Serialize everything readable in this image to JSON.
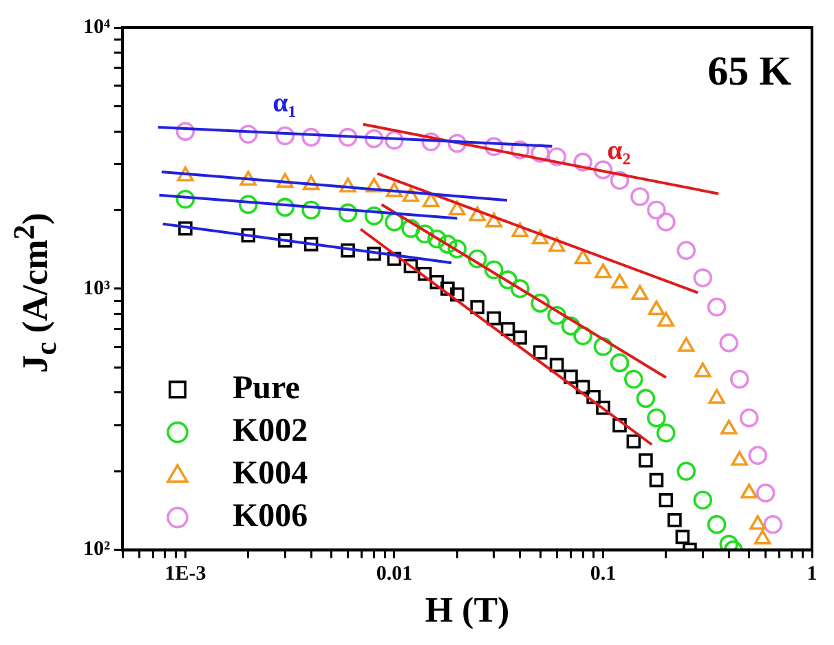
{
  "chart_data": {
    "type": "scatter",
    "xlabel": "H (T)",
    "ylabel": "J$_{c}$ (A/cm$^{2}$)",
    "log": "xy",
    "grid": false,
    "legend": "bottom left",
    "line_style": "solid",
    "xlim": [
      0.0005,
      1
    ],
    "ylim": [
      100,
      10000
    ],
    "xticks": [
      {
        "value": 0.0005,
        "label": null
      },
      {
        "value": 0.0006,
        "label": null
      },
      {
        "value": 0.0007,
        "label": null
      },
      {
        "value": 0.0008,
        "label": null
      },
      {
        "value": 0.0009,
        "label": null
      },
      {
        "value": 0.001,
        "label": "1E-3"
      },
      {
        "value": 0.002,
        "label": null
      },
      {
        "value": 0.003,
        "label": null
      },
      {
        "value": 0.004,
        "label": null
      },
      {
        "value": 0.005,
        "label": null
      },
      {
        "value": 0.006,
        "label": null
      },
      {
        "value": 0.007,
        "label": null
      },
      {
        "value": 0.008,
        "label": null
      },
      {
        "value": 0.009,
        "label": null
      },
      0.01,
      {
        "value": 0.02,
        "label": null
      },
      {
        "value": 0.03,
        "label": null
      },
      {
        "value": 0.04,
        "label": null
      },
      {
        "value": 0.05,
        "label": null
      },
      {
        "value": 0.06,
        "label": null
      },
      {
        "value": 0.07,
        "label": null
      },
      {
        "value": 0.08,
        "label": null
      },
      {
        "value": 0.09,
        "label": null
      },
      0.1,
      {
        "value": 0.2,
        "label": null
      },
      {
        "value": 0.3,
        "label": null
      },
      {
        "value": 0.4,
        "label": null
      },
      {
        "value": 0.5,
        "label": null
      },
      {
        "value": 0.6,
        "label": null
      },
      {
        "value": 0.7,
        "label": null
      },
      {
        "value": 0.8,
        "label": null
      },
      {
        "value": 0.9,
        "label": null
      },
      1
    ],
    "yticks": [
      {
        "value": 100,
        "label": "10²"
      },
      {
        "value": 200,
        "label": null
      },
      {
        "value": 300,
        "label": null
      },
      {
        "value": 400,
        "label": null
      },
      {
        "value": 500,
        "label": null
      },
      {
        "value": 600,
        "label": null
      },
      {
        "value": 700,
        "label": null
      },
      {
        "value": 800,
        "label": null
      },
      {
        "value": 900,
        "label": null
      },
      {
        "value": 1000,
        "label": "10³"
      },
      {
        "value": 2000,
        "label": null
      },
      {
        "value": 3000,
        "label": null
      },
      {
        "value": 4000,
        "label": null
      },
      {
        "value": 5000,
        "label": null
      },
      {
        "value": 6000,
        "label": null
      },
      {
        "value": 7000,
        "label": null
      },
      {
        "value": 8000,
        "label": null
      },
      {
        "value": 9000,
        "label": null
      },
      {
        "value": 10000,
        "label": "10⁴"
      }
    ],
    "annotations": [
      "65 K",
      "α₁",
      "α₂"
    ],
    "series": [
      {
        "name": "Pure",
        "marker": "square",
        "color": "#000000",
        "x": [
          0.001,
          0.002,
          0.003,
          0.004,
          0.006,
          0.008,
          0.01,
          0.012,
          0.014,
          0.016,
          0.018,
          0.02,
          0.025,
          0.03,
          0.035,
          0.04,
          0.05,
          0.06,
          0.07,
          0.08,
          0.09,
          0.1,
          0.12,
          0.14,
          0.16,
          0.18,
          0.2,
          0.22,
          0.24,
          0.26
        ],
        "values": [
          1700,
          1600,
          1530,
          1480,
          1400,
          1360,
          1300,
          1220,
          1140,
          1060,
          1000,
          950,
          850,
          770,
          700,
          650,
          570,
          510,
          460,
          420,
          385,
          350,
          300,
          260,
          220,
          185,
          155,
          130,
          112,
          100
        ]
      },
      {
        "name": "K002",
        "marker": "circle",
        "color": "#22dd22",
        "x": [
          0.001,
          0.002,
          0.003,
          0.004,
          0.006,
          0.008,
          0.01,
          0.012,
          0.014,
          0.016,
          0.018,
          0.02,
          0.025,
          0.03,
          0.035,
          0.04,
          0.05,
          0.06,
          0.07,
          0.08,
          0.1,
          0.12,
          0.14,
          0.16,
          0.18,
          0.2,
          0.25,
          0.3,
          0.35,
          0.4,
          0.42
        ],
        "values": [
          2200,
          2100,
          2050,
          2000,
          1950,
          1900,
          1800,
          1700,
          1620,
          1550,
          1480,
          1420,
          1300,
          1180,
          1080,
          1000,
          880,
          790,
          720,
          660,
          600,
          520,
          450,
          380,
          320,
          280,
          200,
          155,
          125,
          105,
          100
        ]
      },
      {
        "name": "K004",
        "marker": "triangle",
        "color": "#f39a1e",
        "x": [
          0.001,
          0.002,
          0.003,
          0.004,
          0.006,
          0.008,
          0.01,
          0.012,
          0.015,
          0.02,
          0.025,
          0.03,
          0.04,
          0.05,
          0.06,
          0.08,
          0.1,
          0.12,
          0.15,
          0.18,
          0.2,
          0.25,
          0.3,
          0.35,
          0.4,
          0.45,
          0.5,
          0.55,
          0.58
        ],
        "values": [
          2700,
          2600,
          2550,
          2500,
          2450,
          2450,
          2350,
          2250,
          2150,
          2000,
          1900,
          1800,
          1650,
          1550,
          1450,
          1300,
          1150,
          1050,
          950,
          830,
          750,
          600,
          480,
          380,
          290,
          220,
          165,
          125,
          110
        ]
      },
      {
        "name": "K006",
        "marker": "circle",
        "color": "#e68ae6",
        "x": [
          0.001,
          0.002,
          0.003,
          0.004,
          0.006,
          0.008,
          0.01,
          0.015,
          0.02,
          0.03,
          0.04,
          0.05,
          0.06,
          0.08,
          0.1,
          0.12,
          0.15,
          0.18,
          0.2,
          0.25,
          0.3,
          0.35,
          0.4,
          0.45,
          0.5,
          0.55,
          0.6,
          0.65
        ],
        "values": [
          4000,
          3900,
          3850,
          3800,
          3800,
          3750,
          3700,
          3650,
          3600,
          3500,
          3400,
          3300,
          3200,
          3050,
          2850,
          2600,
          2250,
          2000,
          1800,
          1400,
          1100,
          850,
          620,
          450,
          320,
          230,
          165,
          125
        ]
      },
      {
        "type": "line",
        "marker": "none",
        "color": "#2222dd",
        "x": [
          0.00078,
          0.0188
        ],
        "values": [
          1770,
          1255
        ]
      },
      {
        "type": "line",
        "marker": "none",
        "color": "#2222dd",
        "x": [
          0.00075,
          0.02
        ],
        "values": [
          2280,
          1860
        ]
      },
      {
        "type": "line",
        "marker": "none",
        "color": "#2222dd",
        "x": [
          0.00077,
          0.0347
        ],
        "values": [
          2800,
          2180
        ]
      },
      {
        "type": "line",
        "marker": "none",
        "color": "#2222dd",
        "x": [
          0.00074,
          0.057
        ],
        "values": [
          4150,
          3510
        ]
      },
      {
        "type": "line",
        "marker": "none",
        "color": "#e01b1b",
        "x": [
          0.0069,
          0.171
        ],
        "values": [
          1690,
          253
        ]
      },
      {
        "type": "line",
        "marker": "none",
        "color": "#e01b1b",
        "x": [
          0.0087,
          0.2
        ],
        "values": [
          2100,
          457
        ]
      },
      {
        "type": "line",
        "marker": "none",
        "color": "#e01b1b",
        "x": [
          0.0083,
          0.284
        ],
        "values": [
          2760,
          965
        ]
      },
      {
        "type": "line",
        "marker": "none",
        "color": "#e01b1b",
        "x": [
          0.0071,
          0.357
        ],
        "values": [
          4260,
          2310
        ]
      }
    ]
  }
}
